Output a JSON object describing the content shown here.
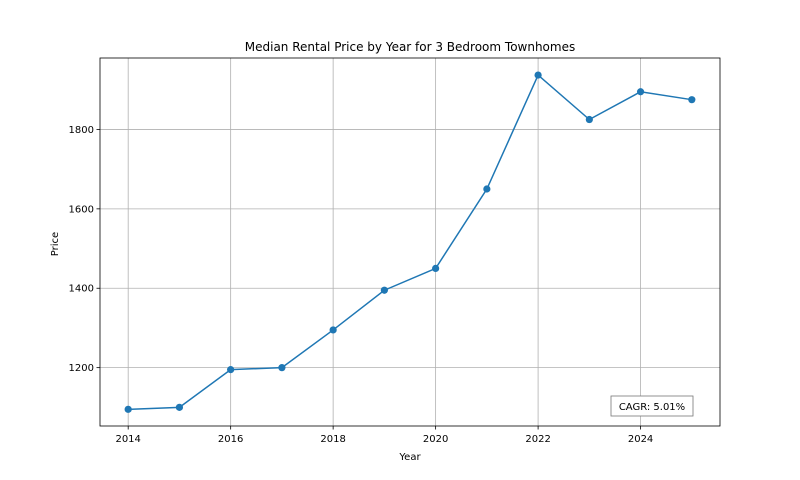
{
  "chart_data": {
    "type": "line",
    "title": "Median Rental Price by Year for 3 Bedroom Townhomes",
    "xlabel": "Year",
    "ylabel": "Price",
    "x": [
      2014,
      2015,
      2016,
      2017,
      2018,
      2019,
      2020,
      2021,
      2022,
      2023,
      2024,
      2025
    ],
    "series": [
      {
        "values": [
          1095,
          1100,
          1195,
          1200,
          1295,
          1395,
          1450,
          1650,
          1937,
          1825,
          1895,
          1875
        ]
      }
    ],
    "xlim": [
      2013.45,
      2025.55
    ],
    "ylim": [
      1053,
      1980
    ],
    "xticks": [
      2014,
      2016,
      2018,
      2020,
      2022,
      2024
    ],
    "yticks": [
      1200,
      1400,
      1600,
      1800
    ],
    "grid": true,
    "line_color": "#1f77b4",
    "annotation": "CAGR: 5.01%",
    "annotation_position": "bottom-right"
  }
}
